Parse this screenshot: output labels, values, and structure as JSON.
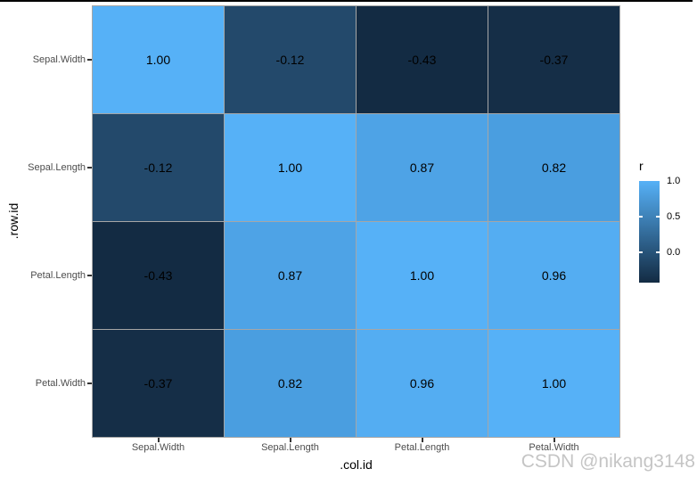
{
  "watermark": {
    "text": "CSDN @nikang3148",
    "color": "#c5c5c5"
  },
  "colors": {
    "background": "#ffffff",
    "tile_border": "#a6a6a6",
    "axis_text": "#4d4d4d",
    "axis_tick": "#333333",
    "axis_title": "#000000",
    "top_border_line": "#000000",
    "cell_text": "#000000"
  },
  "chart_data": {
    "type": "heatmap",
    "title": "",
    "xlabel": ".col.id",
    "ylabel": ".row.id",
    "columns": [
      "Sepal.Width",
      "Sepal.Length",
      "Petal.Length",
      "Petal.Width"
    ],
    "rows": [
      "Sepal.Width",
      "Sepal.Length",
      "Petal.Length",
      "Petal.Width"
    ],
    "values": [
      [
        1.0,
        -0.12,
        -0.43,
        -0.37
      ],
      [
        -0.12,
        1.0,
        0.87,
        0.82
      ],
      [
        -0.43,
        0.87,
        1.0,
        0.96
      ],
      [
        -0.37,
        0.82,
        0.96,
        1.0
      ]
    ],
    "cell_labels": [
      [
        "1.00",
        "-0.12",
        "-0.43",
        "-0.37"
      ],
      [
        "-0.12",
        "1.00",
        "0.87",
        "0.82"
      ],
      [
        "-0.43",
        "0.87",
        "1.00",
        "0.96"
      ],
      [
        "-0.37",
        "0.82",
        "0.96",
        "1.00"
      ]
    ],
    "cell_colors": [
      [
        "#56B1F7",
        "#23496B",
        "#132B43",
        "#152E47"
      ],
      [
        "#23496B",
        "#56B1F7",
        "#4EA3E6",
        "#4A9EE0"
      ],
      [
        "#132B43",
        "#4EA3E6",
        "#56B1F7",
        "#54ADF2"
      ],
      [
        "#152E47",
        "#4A9EE0",
        "#54ADF2",
        "#56B1F7"
      ]
    ],
    "color_scale": {
      "low_color": "#132B43",
      "high_color": "#56B1F7",
      "domain_min": -0.43,
      "domain_max": 1.0
    },
    "legend": {
      "title": "r",
      "position": "right",
      "tick_labels": [
        "1.0",
        "0.5",
        "0.0"
      ],
      "tick_values": [
        1.0,
        0.5,
        0.0
      ]
    },
    "grid": false
  }
}
